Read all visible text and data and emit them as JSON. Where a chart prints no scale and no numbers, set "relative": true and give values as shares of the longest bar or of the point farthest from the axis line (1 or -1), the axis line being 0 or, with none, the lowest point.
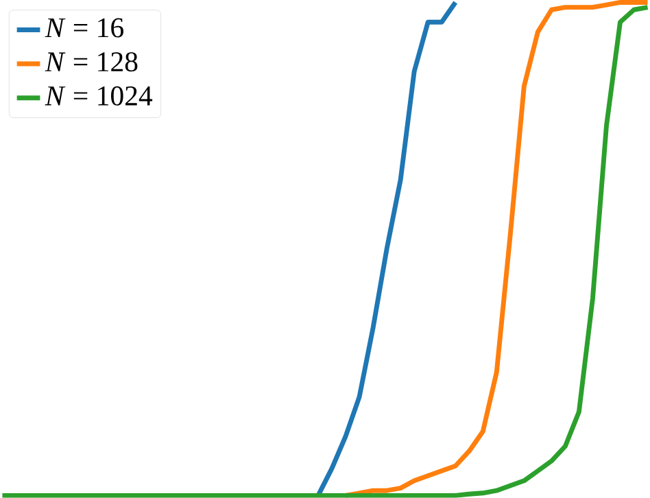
{
  "chart_data": {
    "type": "line",
    "relative": true,
    "legend": "top left",
    "marker": "none",
    "line_style": "solid",
    "categories": [
      null,
      null,
      null,
      null,
      null,
      null,
      null,
      null,
      null,
      null,
      null,
      null,
      null,
      null,
      null,
      null,
      null,
      null,
      null,
      null,
      null,
      null,
      null,
      null,
      null,
      null,
      null,
      null,
      null,
      null,
      null,
      null,
      null,
      null,
      null,
      null,
      null,
      null,
      null,
      null,
      null,
      null,
      null,
      null,
      null,
      null,
      null,
      null
    ],
    "series": [
      {
        "name": "*N* = 16",
        "color": "#1f77b4",
        "values": [
          null,
          null,
          null,
          null,
          null,
          null,
          null,
          null,
          null,
          null,
          null,
          null,
          null,
          null,
          null,
          null,
          null,
          null,
          null,
          null,
          null,
          null,
          null,
          0,
          0.055,
          0.12,
          0.2,
          0.34,
          0.5,
          0.64,
          0.86,
          0.96,
          0.96,
          1.0,
          null,
          null,
          null,
          null,
          null,
          null,
          null,
          null,
          null,
          null,
          null,
          null,
          null,
          null
        ]
      },
      {
        "name": "*N* = 128",
        "color": "#ff7f0e",
        "values": [
          null,
          null,
          null,
          null,
          null,
          null,
          null,
          null,
          null,
          null,
          null,
          null,
          null,
          null,
          null,
          null,
          null,
          null,
          null,
          null,
          null,
          null,
          null,
          null,
          null,
          0,
          0.005,
          0.01,
          0.01,
          0.015,
          0.03,
          0.04,
          0.05,
          0.06,
          0.09,
          0.13,
          0.25,
          0.53,
          0.83,
          0.94,
          0.985,
          0.99,
          0.99,
          0.99,
          0.995,
          1.0,
          1.0,
          1.0
        ]
      },
      {
        "name": "*N* = 1024",
        "color": "#2ca02c",
        "values": [
          0,
          0,
          0,
          0,
          0,
          0,
          0,
          0,
          0,
          0,
          0,
          0,
          0,
          0,
          0,
          0,
          0,
          0,
          0,
          0,
          0,
          0,
          0,
          0,
          0,
          0,
          0,
          0,
          0,
          0,
          0,
          0,
          0,
          0,
          0.003,
          0.005,
          0.01,
          0.02,
          0.03,
          0.05,
          0.07,
          0.1,
          0.17,
          0.4,
          0.75,
          0.96,
          0.985,
          0.99
        ]
      }
    ]
  }
}
